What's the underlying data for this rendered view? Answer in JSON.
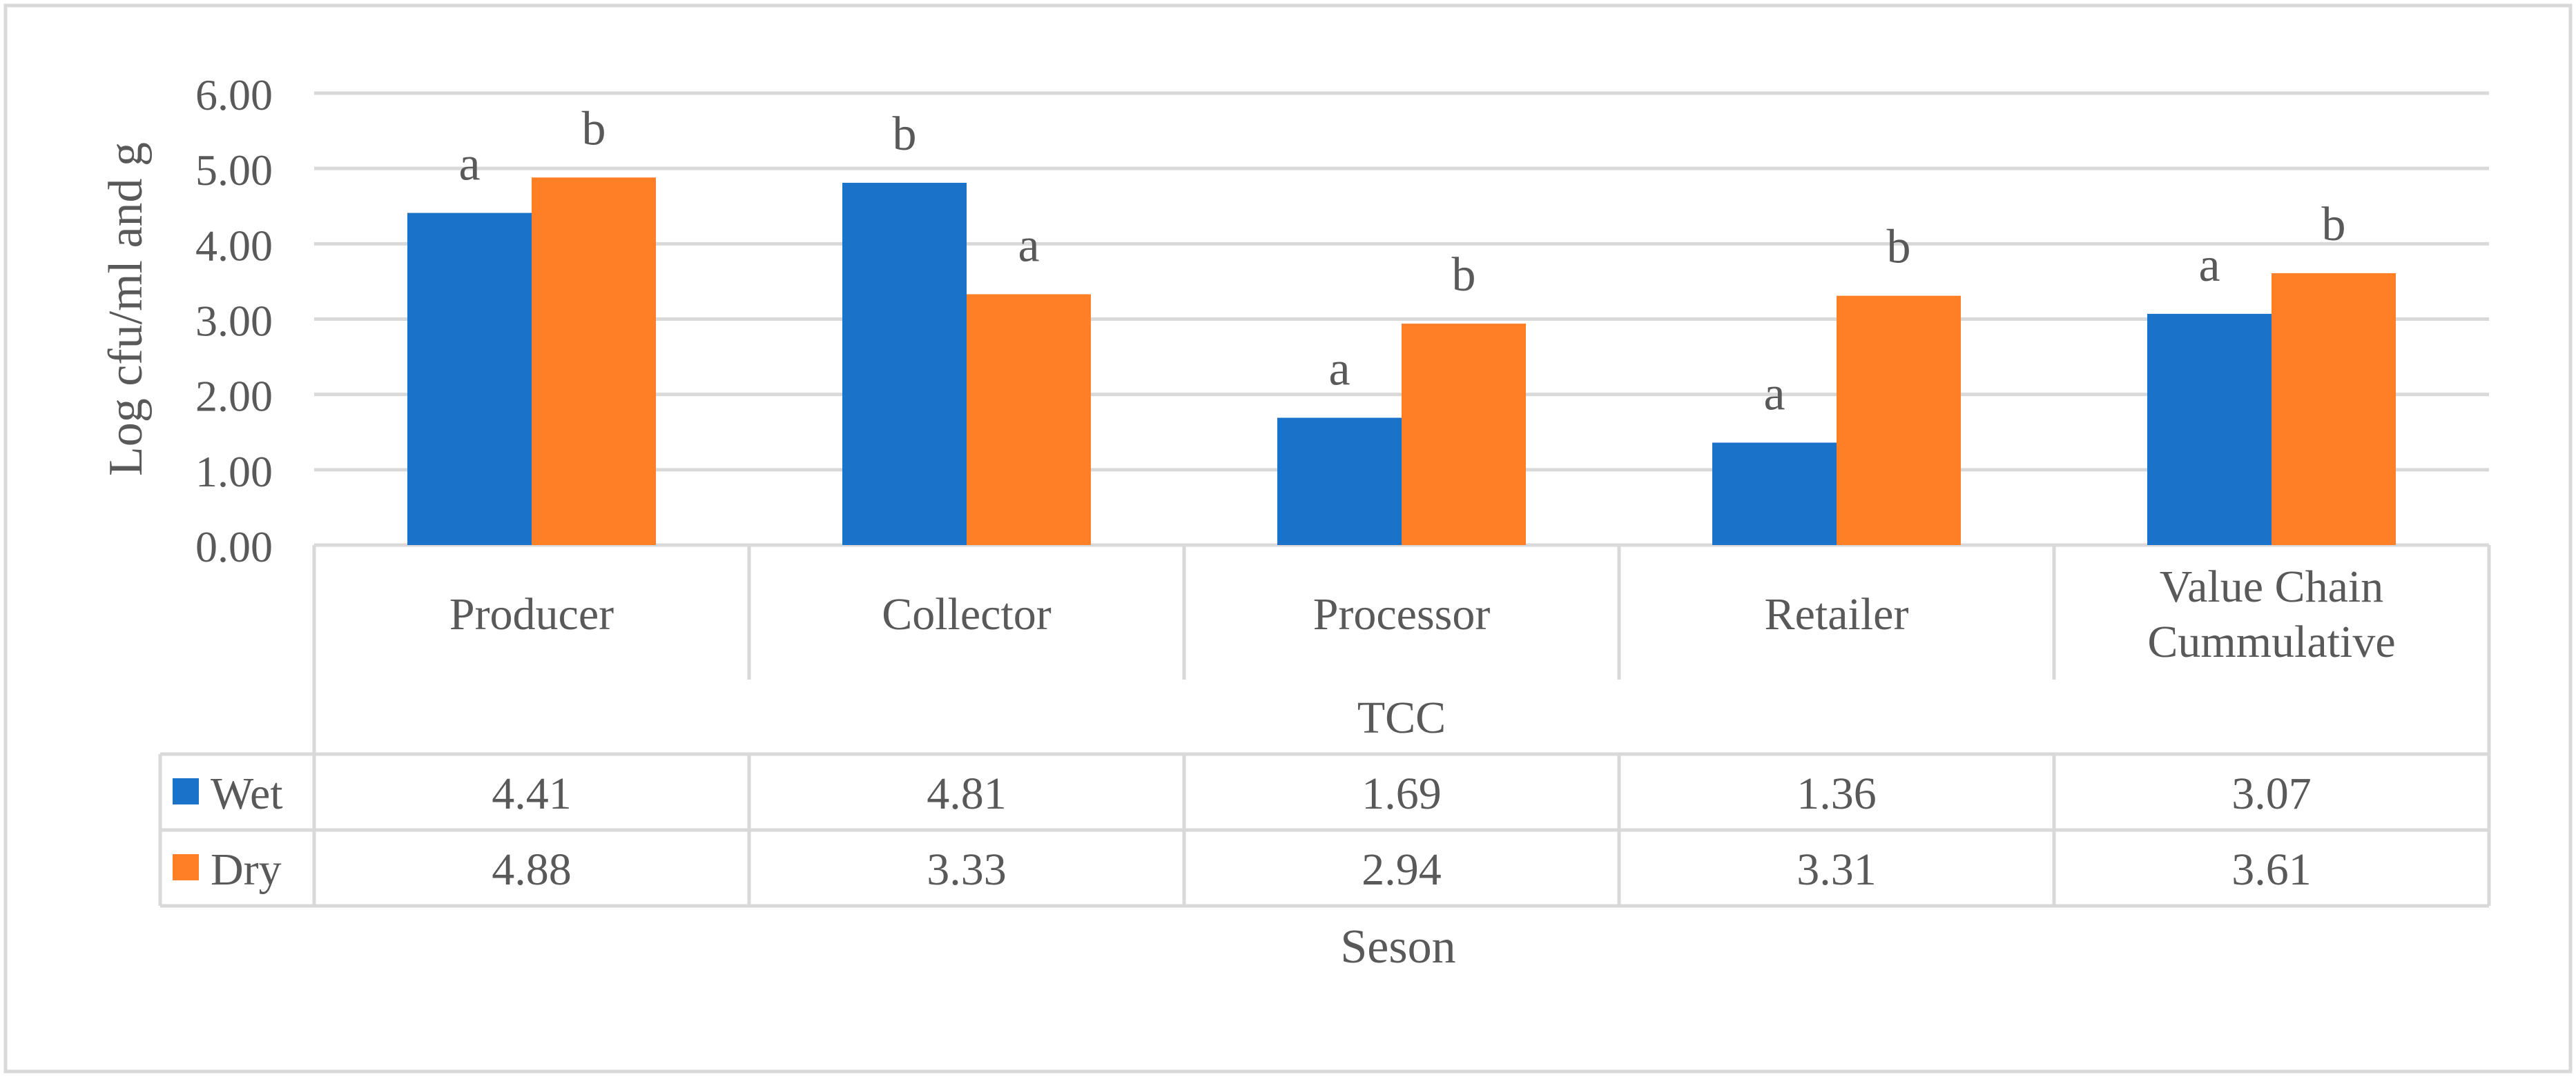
{
  "chart_data": {
    "type": "bar",
    "categories": [
      "Producer",
      "Collector",
      "Processor",
      "Retailer",
      "Value Chain Cummulative"
    ],
    "category_lines": [
      [
        "Producer"
      ],
      [
        "Collector"
      ],
      [
        "Processor"
      ],
      [
        "Retailer"
      ],
      [
        "Value Chain",
        "Cummulative"
      ]
    ],
    "group_label": "TCC",
    "series": [
      {
        "name": "Wet",
        "color": "#1a73c9",
        "values": [
          4.41,
          4.81,
          1.69,
          1.36,
          3.07
        ],
        "letters": [
          "a",
          "b",
          "a",
          "a",
          "a"
        ]
      },
      {
        "name": "Dry",
        "color": "#ff7f27",
        "values": [
          4.88,
          3.33,
          2.94,
          3.31,
          3.61
        ],
        "letters": [
          "b",
          "a",
          "b",
          "b",
          "b"
        ]
      }
    ],
    "ylabel": "Log cfu/ml and g",
    "xlabel": "Seson",
    "ylim": [
      0,
      6
    ],
    "yticks": [
      "0.00",
      "1.00",
      "2.00",
      "3.00",
      "4.00",
      "5.00",
      "6.00"
    ],
    "grid": true,
    "data_table": true
  }
}
